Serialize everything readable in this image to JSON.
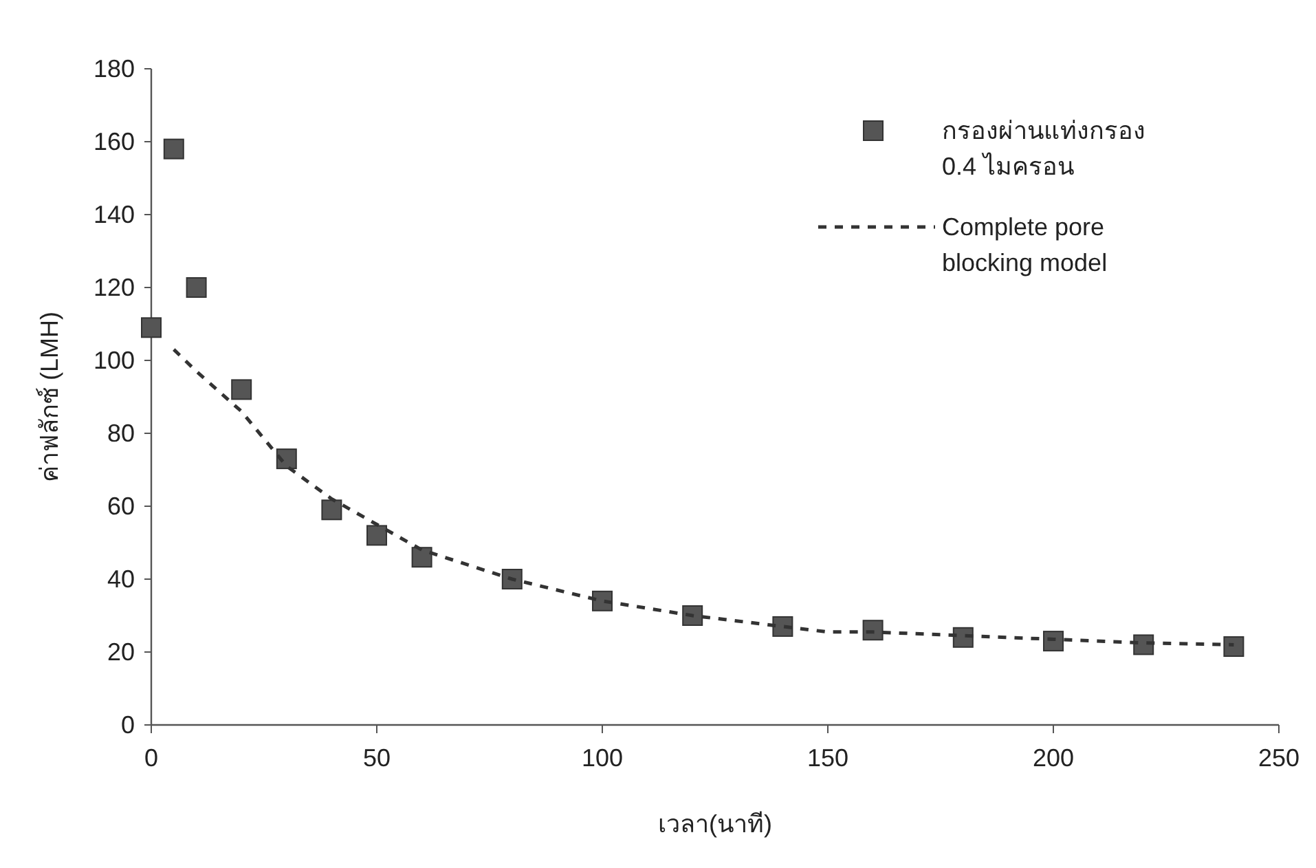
{
  "chart_data": {
    "type": "scatter",
    "xlabel": "เวลา(นาที)",
    "ylabel": "ค่าฟลักซ์ (LMH)",
    "xlim": [
      0,
      250
    ],
    "xticks": [
      0,
      50,
      100,
      150,
      200,
      250
    ],
    "ylim": [
      0,
      180
    ],
    "yticks": [
      0,
      20,
      40,
      60,
      80,
      100,
      120,
      140,
      160,
      180
    ],
    "grid": false,
    "legend": "top right",
    "series": [
      {
        "name": "กรองผ่านแท่งกรอง 0.4 ไมครอน",
        "marker": "square",
        "color": "#555555",
        "x": [
          0,
          5,
          10,
          20,
          30,
          40,
          50,
          60,
          80,
          100,
          120,
          140,
          160,
          180,
          200,
          220,
          240
        ],
        "values": [
          109,
          158,
          120,
          92,
          73,
          59,
          52,
          46,
          40,
          34,
          30,
          27,
          26,
          24,
          23,
          22,
          21.5
        ]
      },
      {
        "name": "Complete pore blocking model",
        "type": "line",
        "marker": "none",
        "line_style": "dashed",
        "color": "#333333",
        "x": [
          5,
          10,
          20,
          30,
          40,
          50,
          60,
          80,
          100,
          120,
          140,
          150,
          160,
          180,
          200,
          220,
          240
        ],
        "values": [
          103,
          97,
          86,
          71,
          62,
          55,
          48,
          40,
          34,
          30,
          27,
          25.5,
          25.5,
          24.5,
          23.5,
          22.5,
          22
        ]
      }
    ]
  }
}
